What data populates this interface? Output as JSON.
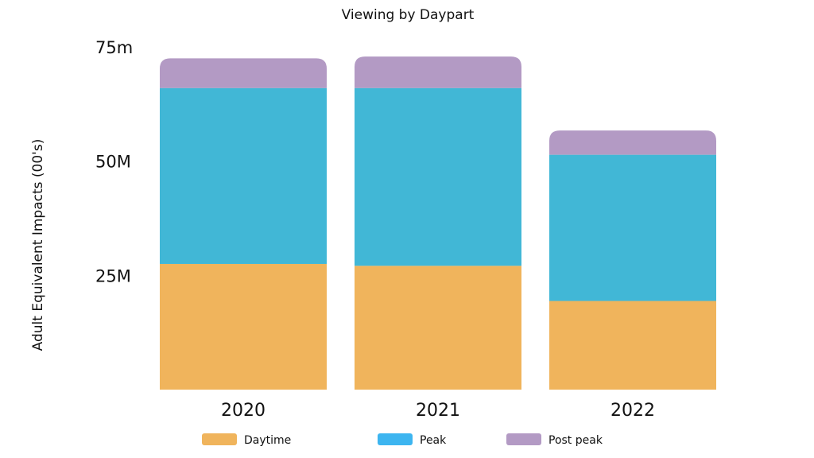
{
  "chart_data": {
    "type": "bar",
    "stacked": true,
    "title": "Viewing by Daypart",
    "ylabel": "Adult Equivalent Impacts (00's)",
    "xlabel": "",
    "categories": [
      "2020",
      "2021",
      "2022"
    ],
    "series": [
      {
        "name": "Daytime",
        "color": "#F0B45C",
        "values": [
          27.5,
          27.1,
          19.4
        ]
      },
      {
        "name": "Peak",
        "color": "#41B7D6",
        "values": [
          38.5,
          38.9,
          32.0
        ]
      },
      {
        "name": "Post peak",
        "color": "#B39AC4",
        "values": [
          6.5,
          6.9,
          5.3
        ]
      }
    ],
    "legend_swatch_colors": [
      "#F0B45C",
      "#3DB5F0",
      "#B39AC4"
    ],
    "y_ticks": [
      {
        "value": 25,
        "label": "25M"
      },
      {
        "value": 50,
        "label": "50M"
      },
      {
        "value": 75,
        "label": "75m"
      }
    ],
    "ylim": [
      0,
      75
    ],
    "grid": false,
    "legend_position": "bottom"
  }
}
